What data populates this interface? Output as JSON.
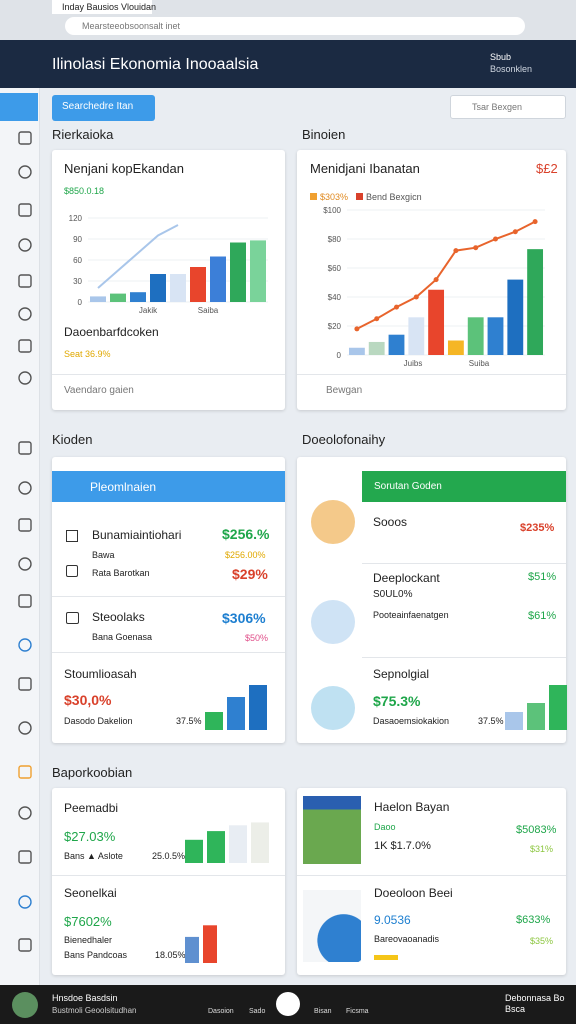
{
  "browser": {
    "tab": "Inday Bausios Vlouidan",
    "url": "Mearsteeobsoonsalt inet"
  },
  "header": {
    "title": "Ilinolasi Ekonomia Inooaalsia",
    "user_name": "Sbub",
    "user_role": "Bosonklen"
  },
  "toolbar": {
    "button": "Searchedre Itan",
    "search": "Tsar Bexgen"
  },
  "sections": [
    "Rierkaioka",
    "Binoien",
    "Kioden",
    "Doeolofonaihy",
    "Baporkoobian"
  ],
  "chart_cards": [
    {
      "title": "Nenjani kopEkandan",
      "subtitle": "$850.0.18",
      "ylim": [
        0,
        120
      ],
      "yticks": [
        0,
        30,
        60,
        90,
        120
      ],
      "bars": [
        8,
        12,
        14,
        40,
        40,
        50,
        65,
        85,
        88
      ],
      "bar_colors": [
        "#a9c6ea",
        "#5cc27a",
        "#2f80d0",
        "#1e6fc0",
        "#d8e4f4",
        "#e8452c",
        "#3c7fd8",
        "#2fa85a",
        "#7ad39a"
      ],
      "line": [
        20,
        45,
        70,
        95,
        110,
        null,
        null,
        null,
        null
      ],
      "line_color": "#a9c6ea",
      "x_labels": [
        "Jakik",
        "Saiba"
      ],
      "caption": "Daoenbarfdcoken",
      "caption_value": "Seat 36.9%",
      "footer": "Vaendaro gaien"
    },
    {
      "title": "Menidjani Ibanatan",
      "legend": [
        "$303%",
        "Bend Bexgicn"
      ],
      "legend_colors": [
        "#f0a030",
        "#d9412b"
      ],
      "icon": "$£2",
      "ylim": [
        0,
        100
      ],
      "yticks": [
        0,
        {
          "value": 20,
          "label": "$20"
        },
        {
          "value": 40,
          "label": "$40"
        },
        {
          "value": 60,
          "label": "$60"
        },
        {
          "value": 80,
          "label": "$80"
        },
        {
          "value": 100,
          "label": "$100"
        }
      ],
      "bars": [
        5,
        9,
        14,
        26,
        45,
        10,
        26,
        26,
        52,
        73
      ],
      "bar_colors": [
        "#a9c6ea",
        "#b9d8c0",
        "#2f80d0",
        "#d8e4f4",
        "#e8452c",
        "#f5b625",
        "#5cc27a",
        "#2f80d0",
        "#1e6fc0",
        "#2fa85a"
      ],
      "line": [
        18,
        25,
        33,
        40,
        52,
        72,
        74,
        80,
        85,
        92
      ],
      "line_color": "#e8642c",
      "line2_color": "#2fa85a",
      "x_labels": [
        "Juibs",
        "Suiba"
      ],
      "footer": "Bewgan"
    }
  ],
  "list_card_1": {
    "header": "Pleomlnaien",
    "row1": {
      "name": "Bunamiaintiohari",
      "value": "$256.%",
      "sub": "Bawa",
      "sub_value": "$256.00%",
      "name2": "Rata Barotkan",
      "value2": "$29%"
    },
    "row2": {
      "name": "Steoolaks",
      "value": "$306%",
      "sub": "Bana Goenasa",
      "sub_value": "$50%"
    },
    "row3": {
      "name": "Stoumlioasah",
      "value": "$30,0%",
      "sub": "Dasodo Dakelion",
      "sub_value": "37.5%",
      "bars": [
        30,
        55,
        75
      ],
      "colors": [
        "#2fb55a",
        "#2f80d0",
        "#1e6fc0"
      ]
    }
  },
  "list_card_2": {
    "header": "Sorutan Goden",
    "row1": {
      "name": "Sooos",
      "value": "$235%"
    },
    "row2": {
      "name": "Deeplockant",
      "sub": "S0UL0%",
      "name2": "Pooteainfaenatgen",
      "value": "$51%",
      "value2": "$61%"
    },
    "row3": {
      "name": "Sepnolgial",
      "value": "$75.3%",
      "sub": "Dasaoemsiokakion",
      "sub_value": "37.5%",
      "bars": [
        30,
        45,
        75
      ],
      "colors": [
        "#a9c6ea",
        "#5cc27a",
        "#2fb55a"
      ]
    }
  },
  "report_card_1": {
    "a": {
      "name": "Peemadbi",
      "value": "$27.03%",
      "sub": "Bans ▲ Aslote",
      "sub_value": "25.0.5%",
      "bars": [
        40,
        55,
        65,
        70
      ],
      "colors": [
        "#2fb55a",
        "#2fb55a",
        "#e8edf3",
        "#eceee8"
      ]
    },
    "b": {
      "name": "Seonelkai",
      "value": "$7602%",
      "sub": "Bienedhaler",
      "sub2": "Bans Pandcoas",
      "sub_value": "18.05%",
      "bars": [
        45,
        65
      ],
      "colors": [
        "#5f90d0",
        "#e8452c"
      ]
    }
  },
  "report_card_2": {
    "a": {
      "name": "Haelon Bayan",
      "sub": "Daoo",
      "value": "$5083%",
      "detail": "1K $1.7.0%",
      "value2": "$31%"
    },
    "b": {
      "name": "Doeoloon Beei",
      "value": "9.0536",
      "sub": "Bareovaoanadis",
      "value2": "$633%",
      "value3": "$35%"
    }
  },
  "footer": {
    "name": "Hnsdoe Basdsin",
    "role": "Bustmoli Geoolsitudhan",
    "nav": [
      "Dasoion",
      "Sado",
      "Bisan",
      "Ficsma"
    ],
    "right": "Debonnasa Bo Bsca"
  }
}
